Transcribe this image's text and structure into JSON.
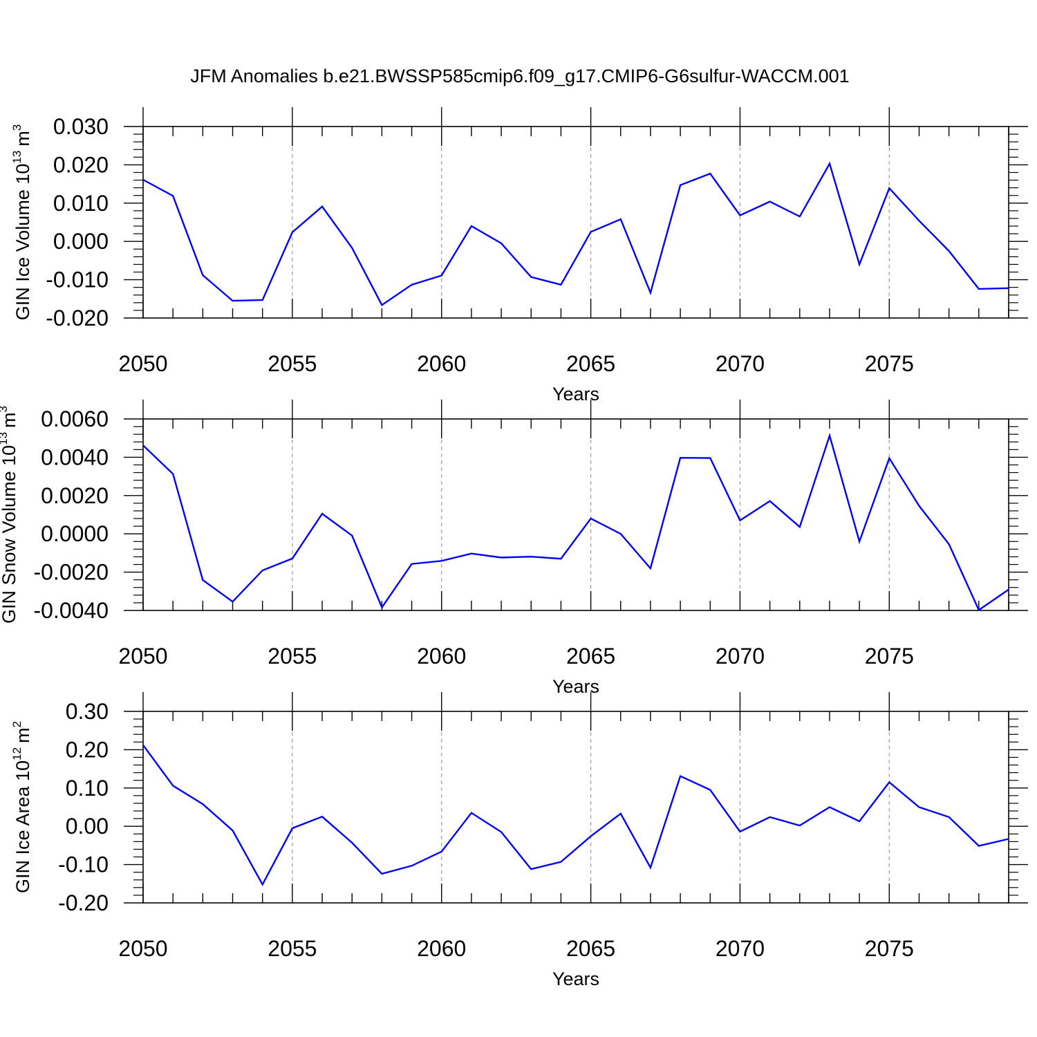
{
  "title": "JFM Anomalies b.e21.BWSSP585cmip6.f09_g17.CMIP6-G6sulfur-WACCM.001",
  "line_color": "#0000ff",
  "grid_color": "#999999",
  "chart_data": [
    {
      "type": "line",
      "title": "",
      "xlabel": "Years",
      "ylabel": "GIN Ice Volume 10",
      "ylabel_exp": "13",
      "ylabel_unit": "m",
      "ylabel_unit_exp": "3",
      "xlim": [
        2050,
        2079
      ],
      "ylim": [
        -0.02,
        0.03
      ],
      "xticks": [
        2050,
        2055,
        2060,
        2065,
        2070,
        2075
      ],
      "xtick_labels": [
        "2050",
        "2055",
        "2060",
        "2065",
        "2070",
        "2075"
      ],
      "yticks": [
        -0.02,
        -0.01,
        0.0,
        0.01,
        0.02,
        0.03
      ],
      "ytick_labels": [
        "-0.020",
        "-0.010",
        "0.000",
        "0.010",
        "0.020",
        "0.030"
      ],
      "grid": "vertical dashed at major x ticks",
      "legend": "none",
      "series": [
        {
          "x": [
            2050,
            2051,
            2052,
            2053,
            2054,
            2055,
            2056,
            2057,
            2058,
            2059,
            2060,
            2061,
            2062,
            2063,
            2064,
            2065,
            2066,
            2067,
            2068,
            2069,
            2070,
            2071,
            2072,
            2073,
            2074,
            2075,
            2076,
            2077,
            2078,
            2079
          ],
          "values": [
            0.0161,
            0.0119,
            -0.0088,
            -0.0155,
            -0.0153,
            0.0024,
            0.0091,
            -0.0017,
            -0.0166,
            -0.0113,
            -0.0089,
            0.004,
            -0.0005,
            -0.0093,
            -0.0113,
            0.0025,
            0.0058,
            -0.0134,
            0.0147,
            0.0177,
            0.0068,
            0.0104,
            0.0065,
            0.0203,
            -0.006,
            0.0139,
            0.0054,
            -0.0025,
            -0.0124,
            -0.0122
          ]
        }
      ]
    },
    {
      "type": "line",
      "title": "",
      "xlabel": "Years",
      "ylabel": "GIN Snow Volume 10",
      "ylabel_exp": "13",
      "ylabel_unit": "m",
      "ylabel_unit_exp": "3",
      "xlim": [
        2050,
        2079
      ],
      "ylim": [
        -0.004,
        0.006
      ],
      "xticks": [
        2050,
        2055,
        2060,
        2065,
        2070,
        2075
      ],
      "xtick_labels": [
        "2050",
        "2055",
        "2060",
        "2065",
        "2070",
        "2075"
      ],
      "yticks": [
        -0.004,
        -0.002,
        0.0,
        0.002,
        0.004,
        0.006
      ],
      "ytick_labels": [
        "-0.0040",
        "-0.0020",
        "0.0000",
        "0.0020",
        "0.0040",
        "0.0060"
      ],
      "grid": "vertical dashed at major x ticks",
      "legend": "none",
      "series": [
        {
          "x": [
            2050,
            2051,
            2052,
            2053,
            2054,
            2055,
            2056,
            2057,
            2058,
            2059,
            2060,
            2061,
            2062,
            2063,
            2064,
            2065,
            2066,
            2067,
            2068,
            2069,
            2070,
            2071,
            2072,
            2073,
            2074,
            2075,
            2076,
            2077,
            2078,
            2079
          ],
          "values": [
            0.00462,
            0.00313,
            -0.00241,
            -0.00354,
            -0.00191,
            -0.00129,
            0.00105,
            -9e-05,
            -0.00384,
            -0.00157,
            -0.00141,
            -0.00103,
            -0.00124,
            -0.00119,
            -0.0013,
            0.0008,
            0.0,
            -0.0018,
            0.00397,
            0.00396,
            0.0007,
            0.00171,
            0.00036,
            0.00513,
            -0.0004,
            0.00395,
            0.00146,
            -0.00054,
            -0.00398,
            -0.00291
          ]
        }
      ]
    },
    {
      "type": "line",
      "title": "",
      "xlabel": "Years",
      "ylabel": "GIN Ice Area 10",
      "ylabel_exp": "12",
      "ylabel_unit": "m",
      "ylabel_unit_exp": "2",
      "xlim": [
        2050,
        2079
      ],
      "ylim": [
        -0.2,
        0.3
      ],
      "xticks": [
        2050,
        2055,
        2060,
        2065,
        2070,
        2075
      ],
      "xtick_labels": [
        "2050",
        "2055",
        "2060",
        "2065",
        "2070",
        "2075"
      ],
      "yticks": [
        -0.2,
        -0.1,
        0.0,
        0.1,
        0.2,
        0.3
      ],
      "ytick_labels": [
        "-0.20",
        "-0.10",
        "0.00",
        "0.10",
        "0.20",
        "0.30"
      ],
      "grid": "vertical dashed at major x ticks",
      "legend": "none",
      "series": [
        {
          "x": [
            2050,
            2051,
            2052,
            2053,
            2054,
            2055,
            2056,
            2057,
            2058,
            2059,
            2060,
            2061,
            2062,
            2063,
            2064,
            2065,
            2066,
            2067,
            2068,
            2069,
            2070,
            2071,
            2072,
            2073,
            2074,
            2075,
            2076,
            2077,
            2078,
            2079
          ],
          "values": [
            0.212,
            0.106,
            0.058,
            -0.011,
            -0.152,
            -0.005,
            0.025,
            -0.043,
            -0.124,
            -0.103,
            -0.066,
            0.035,
            -0.015,
            -0.112,
            -0.093,
            -0.026,
            0.033,
            -0.108,
            0.131,
            0.095,
            -0.014,
            0.024,
            0.002,
            0.05,
            0.013,
            0.115,
            0.05,
            0.024,
            -0.051,
            -0.033
          ]
        }
      ]
    }
  ]
}
